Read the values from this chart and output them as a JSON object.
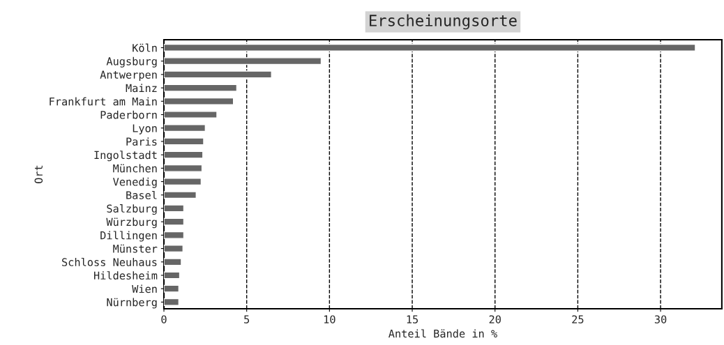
{
  "chart_data": {
    "type": "bar",
    "orientation": "horizontal",
    "title": "Erscheinungsorte",
    "xlabel": "Anteil Bände in %",
    "ylabel": "Ort",
    "categories": [
      "Köln",
      "Augsburg",
      "Antwerpen",
      "Mainz",
      "Frankfurt am Main",
      "Paderborn",
      "Lyon",
      "Paris",
      "Ingolstadt",
      "München",
      "Venedig",
      "Basel",
      "Salzburg",
      "Würzburg",
      "Dillingen",
      "Münster",
      "Schloss Neuhaus",
      "Hildesheim",
      "Wien",
      "Nürnberg"
    ],
    "values": [
      32.1,
      9.5,
      6.5,
      4.4,
      4.2,
      3.2,
      2.5,
      2.4,
      2.35,
      2.3,
      2.25,
      1.95,
      1.2,
      1.2,
      1.2,
      1.15,
      1.05,
      0.95,
      0.9,
      0.9
    ],
    "color": "#666666",
    "xlim": [
      0,
      33.7
    ],
    "xticks": [
      0,
      5,
      10,
      15,
      20,
      25,
      30
    ],
    "grid": "x",
    "line_style": "dashed"
  }
}
